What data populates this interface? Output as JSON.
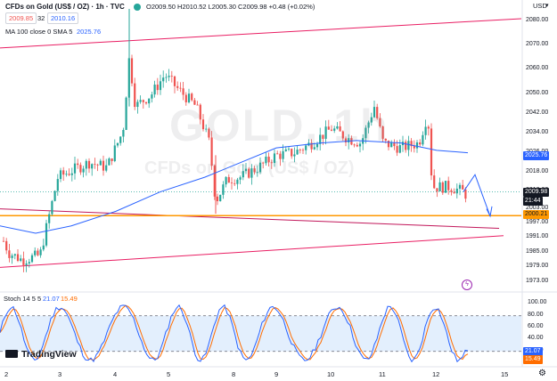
{
  "header": {
    "symbol": "CFDs on Gold (US$ / OZ) · 1h · TVC",
    "ohlc": "O2009.50  H2010.52  L2005.30  C2009.98  +0.48 (+0.02%)",
    "bid": "2009.85",
    "spread": "32",
    "ask": "2010.16",
    "ma_label": "MA 100 close 0 SMA 5",
    "ma_value": "2025.76",
    "currency": "USD",
    "watermark_symbol": "GOLD, 1h",
    "watermark_desc": "CFDs on Gold (US$ / OZ)"
  },
  "stoch": {
    "label": "Stoch 14 5 5",
    "k_value": "21.07",
    "d_value": "15.49",
    "tag_k": "21.07",
    "tag_d": "15.49"
  },
  "brand": {
    "name": "TradingView"
  },
  "price_axis": {
    "labels": [
      "2080.00",
      "2070.00",
      "2060.00",
      "2050.00",
      "2042.00",
      "2034.00",
      "2026.00",
      "2018.00",
      "2010.00",
      "2003.00",
      "1997.00",
      "1991.00",
      "1985.00",
      "1979.00",
      "1973.00"
    ],
    "tag_ma": "2025.76",
    "tag_last": "2009.98",
    "tag_time": "21:44",
    "tag_level": "2000.21"
  },
  "stoch_axis": {
    "labels": [
      "100.00",
      "80.00",
      "60.00",
      "40.00",
      "20.00"
    ]
  },
  "time_axis": {
    "labels": [
      "2",
      "3",
      "4",
      "5",
      "8",
      "9",
      "10",
      "11",
      "12",
      "15"
    ]
  },
  "colors": {
    "up": "#26a69a",
    "down": "#ef5350",
    "ma": "#2962ff",
    "channel": "#e91e63",
    "level": "#ff9800",
    "stoch_k": "#2962ff",
    "stoch_d": "#ff6d00",
    "band": "#e3effd"
  },
  "chart_data": {
    "type": "candlestick",
    "interval": "1h",
    "ylim": [
      1970,
      2085
    ],
    "x_days": [
      "2",
      "3",
      "4",
      "5",
      "8",
      "9",
      "10",
      "11",
      "12",
      "15"
    ],
    "candles_approx_close": [
      1993,
      1985,
      1982,
      1984,
      2016,
      2030,
      2050,
      2070,
      2042,
      2050,
      2055,
      2040,
      2006,
      2018,
      2022,
      2025,
      2028,
      2030,
      2036,
      2035,
      2028,
      2026,
      2040,
      2045,
      2014,
      2012,
      2010
    ],
    "ma_100": [
      1996,
      1992,
      1995,
      2000,
      2008,
      2016,
      2022,
      2028,
      2030,
      2031,
      2030,
      2029,
      2027,
      2026
    ],
    "horizontal_level": 2000.21,
    "last_price": 2009.98,
    "stochastic": {
      "k_last": 21.07,
      "d_last": 15.49,
      "upper_band": 80,
      "lower_band": 20
    }
  }
}
